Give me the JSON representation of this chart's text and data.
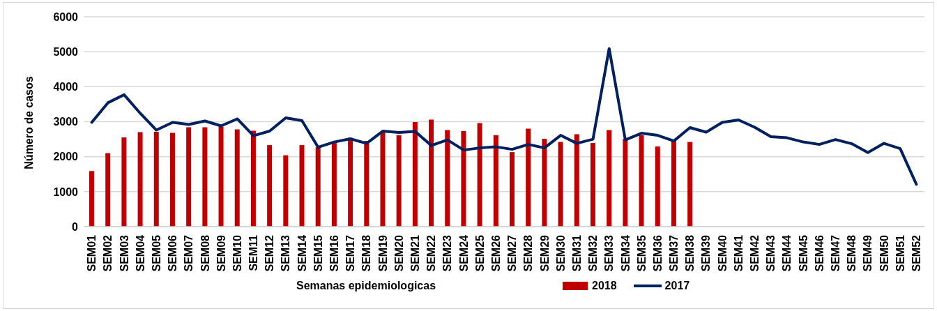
{
  "chart_data": {
    "type": "bar",
    "xlabel": "Semanas epidemiologicas",
    "ylabel": "Número de casos",
    "categories": [
      "SEM01",
      "SEM02",
      "SEM03",
      "SEM04",
      "SEM05",
      "SEM06",
      "SEM07",
      "SEM08",
      "SEM09",
      "SEM10",
      "SEM11",
      "SEM12",
      "SEM13",
      "SEM14",
      "SEM15",
      "SEM16",
      "SEM17",
      "SEM18",
      "SEM19",
      "SEM20",
      "SEM21",
      "SEM22",
      "SEM23",
      "SEM24",
      "SEM25",
      "SEM26",
      "SEM27",
      "SEM28",
      "SEM29",
      "SEM30",
      "SEM31",
      "SEM32",
      "SEM33",
      "SEM34",
      "SEM35",
      "SEM36",
      "SEM37",
      "SEM38",
      "SEM39",
      "SEM40",
      "SEM41",
      "SEM42",
      "SEM43",
      "SEM44",
      "SEM45",
      "SEM46",
      "SEM47",
      "SEM48",
      "SEM49",
      "SEM50",
      "SEM51",
      "SEM52"
    ],
    "series": [
      {
        "name": "2018",
        "color": "#c00000",
        "values": [
          1590,
          2100,
          2550,
          2700,
          2710,
          2680,
          2840,
          2840,
          2860,
          2780,
          2740,
          2330,
          2040,
          2330,
          2270,
          2390,
          2540,
          2450,
          2690,
          2610,
          2990,
          3060,
          2760,
          2730,
          2960,
          2610,
          2130,
          2800,
          2510,
          2420,
          2640,
          2390,
          2760,
          2510,
          2610,
          2290,
          2490,
          2420,
          null,
          null,
          null,
          null,
          null,
          null,
          null,
          null,
          null,
          null,
          null,
          null,
          null,
          null
        ]
      },
      {
        "name": "2017",
        "type": "line",
        "color": "#002060",
        "values": [
          2980,
          3540,
          3770,
          3240,
          2760,
          2980,
          2920,
          3020,
          2880,
          3080,
          2600,
          2730,
          3110,
          3030,
          2270,
          2420,
          2510,
          2380,
          2730,
          2690,
          2720,
          2320,
          2480,
          2190,
          2250,
          2280,
          2210,
          2350,
          2250,
          2610,
          2380,
          2500,
          5090,
          2480,
          2670,
          2610,
          2450,
          2830,
          2700,
          2980,
          3050,
          2840,
          2570,
          2540,
          2420,
          2350,
          2490,
          2370,
          2120,
          2380,
          2230,
          1210
        ]
      }
    ],
    "ylim": [
      0,
      6000
    ],
    "yticks": [
      0,
      1000,
      2000,
      3000,
      4000,
      5000,
      6000
    ],
    "grid": "y",
    "legend": "bottom",
    "marker": "none",
    "line_style": "solid"
  }
}
